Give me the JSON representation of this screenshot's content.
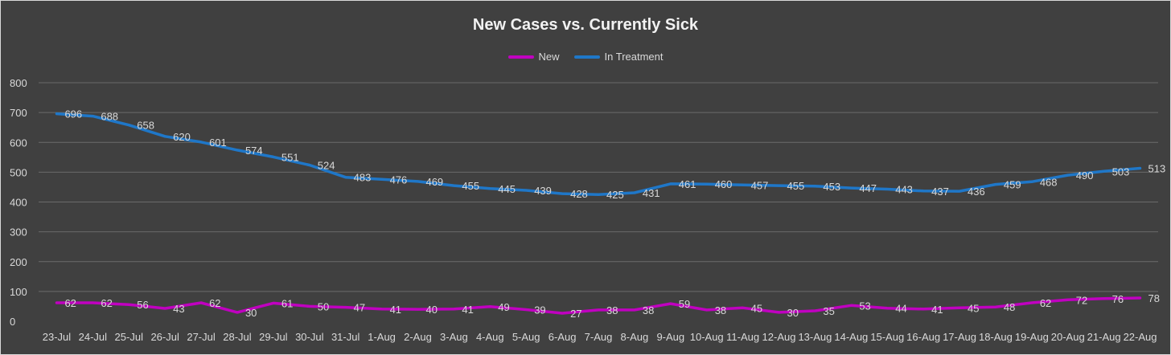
{
  "chart_data": {
    "type": "line",
    "title": "New Cases vs. Currently Sick",
    "categories": [
      "23-Jul",
      "24-Jul",
      "25-Jul",
      "26-Jul",
      "27-Jul",
      "28-Jul",
      "29-Jul",
      "30-Jul",
      "31-Jul",
      "1-Aug",
      "2-Aug",
      "3-Aug",
      "4-Aug",
      "5-Aug",
      "6-Aug",
      "7-Aug",
      "8-Aug",
      "9-Aug",
      "10-Aug",
      "11-Aug",
      "12-Aug",
      "13-Aug",
      "14-Aug",
      "15-Aug",
      "16-Aug",
      "17-Aug",
      "18-Aug",
      "19-Aug",
      "20-Aug",
      "21-Aug",
      "22-Aug"
    ],
    "series": [
      {
        "name": "New",
        "color": "#c000c0",
        "values": [
          62,
          62,
          56,
          43,
          62,
          30,
          61,
          50,
          47,
          41,
          40,
          41,
          49,
          39,
          27,
          38,
          38,
          59,
          38,
          45,
          30,
          35,
          53,
          44,
          41,
          45,
          48,
          62,
          72,
          76,
          78
        ]
      },
      {
        "name": "In Treatment",
        "color": "#1f77c8",
        "values": [
          696,
          688,
          658,
          620,
          601,
          574,
          551,
          524,
          483,
          476,
          469,
          455,
          445,
          439,
          428,
          425,
          431,
          461,
          460,
          457,
          455,
          453,
          447,
          443,
          437,
          436,
          459,
          468,
          490,
          503,
          513
        ]
      }
    ],
    "ylim": [
      0,
      800
    ],
    "yticks": [
      0,
      100,
      200,
      300,
      400,
      500,
      600,
      700,
      800
    ],
    "grid": true,
    "legend_position": "top"
  }
}
